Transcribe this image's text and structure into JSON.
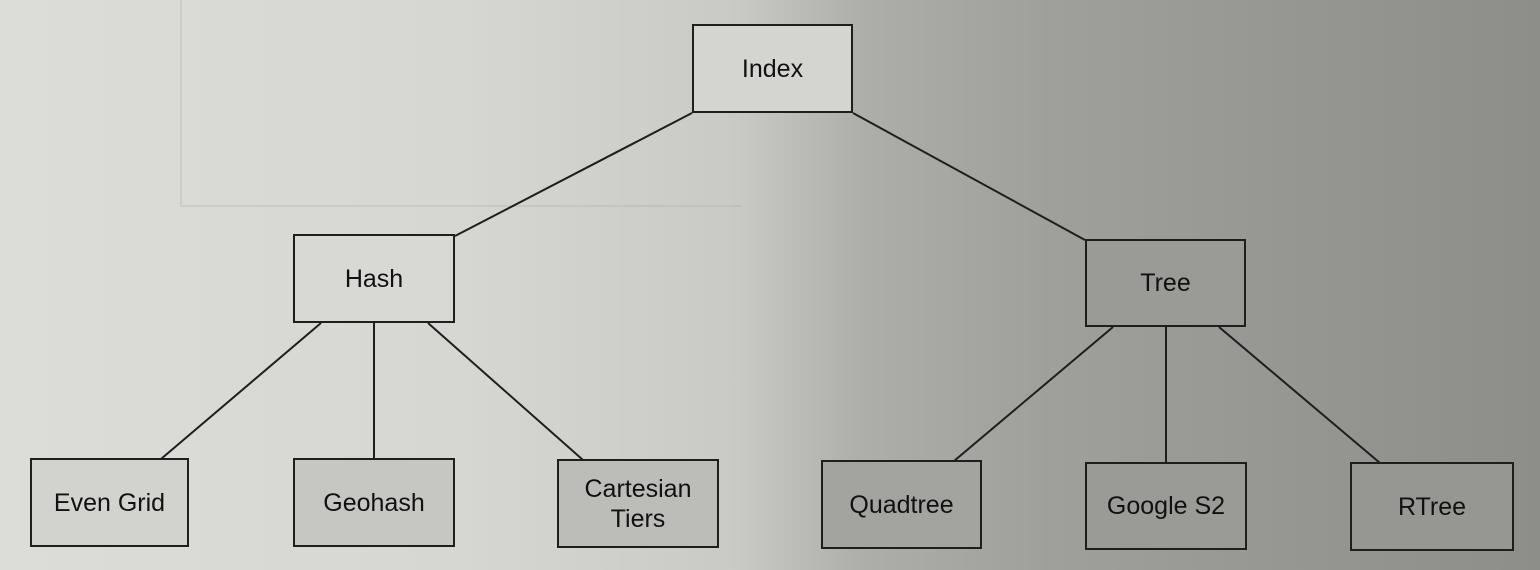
{
  "diagram": {
    "root": {
      "label": "Index"
    },
    "branches": [
      {
        "label": "Hash",
        "children": [
          {
            "label": "Even Grid"
          },
          {
            "label": "Geohash"
          },
          {
            "label": "Cartesian\nTiers"
          }
        ]
      },
      {
        "label": "Tree",
        "children": [
          {
            "label": "Quadtree"
          },
          {
            "label": "Google S2"
          },
          {
            "label": "RTree"
          }
        ]
      }
    ]
  }
}
